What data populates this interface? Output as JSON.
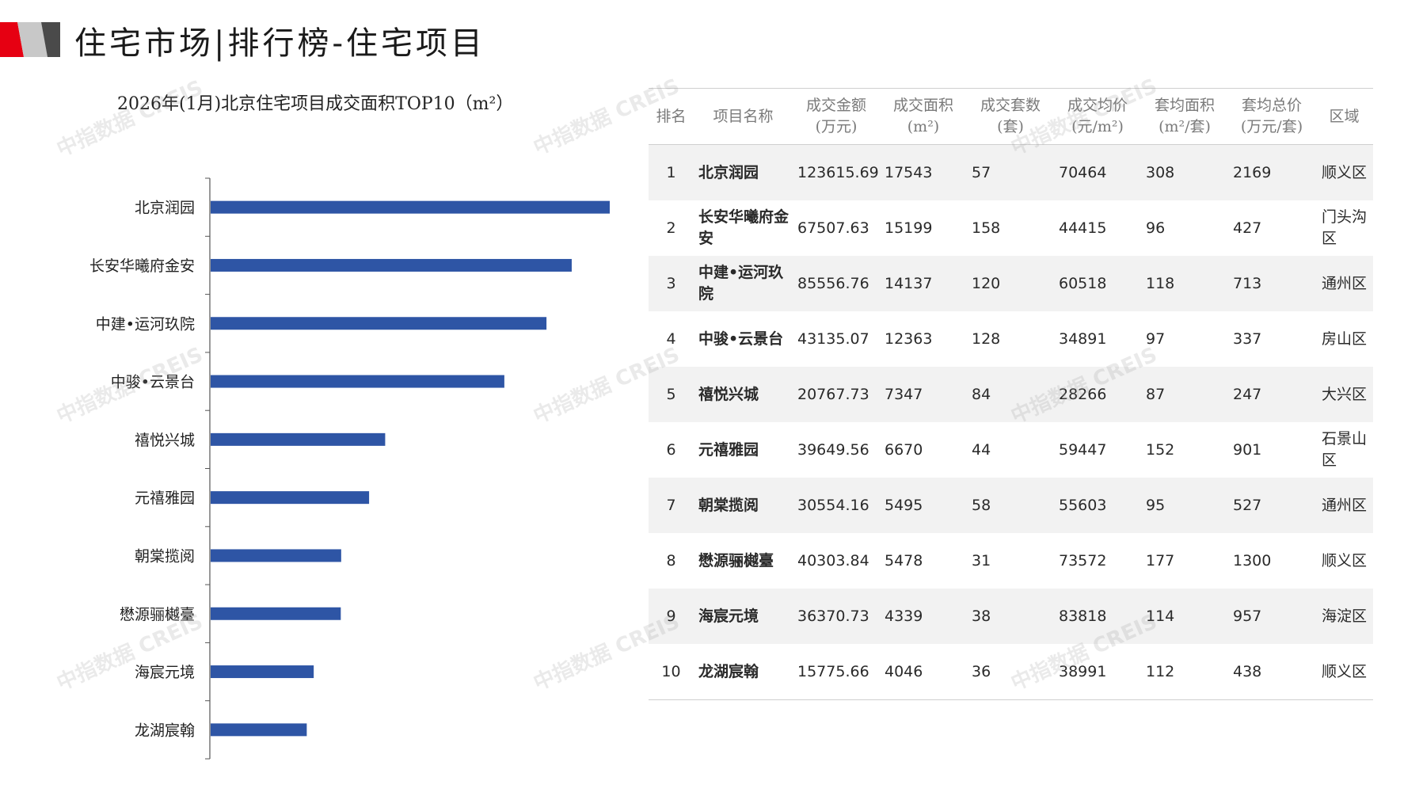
{
  "header": {
    "title": "住宅市场|排行榜-住宅项目",
    "accent_colors": [
      "#e60012",
      "#b5b5b5",
      "#4a4a4a"
    ]
  },
  "chart_data": {
    "type": "bar",
    "orientation": "horizontal",
    "title": "2026年(1月)北京住宅项目成交面积TOP10（m²）",
    "categories": [
      "北京润园",
      "长安华曦府金安",
      "中建•运河玖院",
      "中骏•云景台",
      "禧悦兴城",
      "元禧雅园",
      "朝棠揽阅",
      "懋源骊樾臺",
      "海宸元境",
      "龙湖宸翰"
    ],
    "values": [
      17543,
      15199,
      14137,
      12363,
      7347,
      6670,
      5495,
      5478,
      4339,
      4046
    ],
    "xlim": [
      0,
      20000
    ],
    "bar_color": "#2e55a5",
    "grid": false,
    "legend": "none"
  },
  "table": {
    "headers": [
      "排名",
      "项目名称",
      "成交金额\n(万元)",
      "成交面积\n(m²)",
      "成交套数\n(套)",
      "成交均价\n(元/m²)",
      "套均面积\n(m²/套)",
      "套均总价\n(万元/套)",
      "区域"
    ],
    "rows": [
      [
        "1",
        "北京润园",
        "123615.69",
        "17543",
        "57",
        "70464",
        "308",
        "2169",
        "顺义区"
      ],
      [
        "2",
        "长安华曦府金安",
        "67507.63",
        "15199",
        "158",
        "44415",
        "96",
        "427",
        "门头沟区"
      ],
      [
        "3",
        "中建•运河玖院",
        "85556.76",
        "14137",
        "120",
        "60518",
        "118",
        "713",
        "通州区"
      ],
      [
        "4",
        "中骏•云景台",
        "43135.07",
        "12363",
        "128",
        "34891",
        "97",
        "337",
        "房山区"
      ],
      [
        "5",
        "禧悦兴城",
        "20767.73",
        "7347",
        "84",
        "28266",
        "87",
        "247",
        "大兴区"
      ],
      [
        "6",
        "元禧雅园",
        "39649.56",
        "6670",
        "44",
        "59447",
        "152",
        "901",
        "石景山区"
      ],
      [
        "7",
        "朝棠揽阅",
        "30554.16",
        "5495",
        "58",
        "55603",
        "95",
        "527",
        "通州区"
      ],
      [
        "8",
        "懋源骊樾臺",
        "40303.84",
        "5478",
        "31",
        "73572",
        "177",
        "1300",
        "顺义区"
      ],
      [
        "9",
        "海宸元境",
        "36370.73",
        "4339",
        "38",
        "83818",
        "114",
        "957",
        "海淀区"
      ],
      [
        "10",
        "龙湖宸翰",
        "15775.66",
        "4046",
        "36",
        "38991",
        "112",
        "438",
        "顺义区"
      ]
    ]
  },
  "watermark": "中指数据 CREIS"
}
